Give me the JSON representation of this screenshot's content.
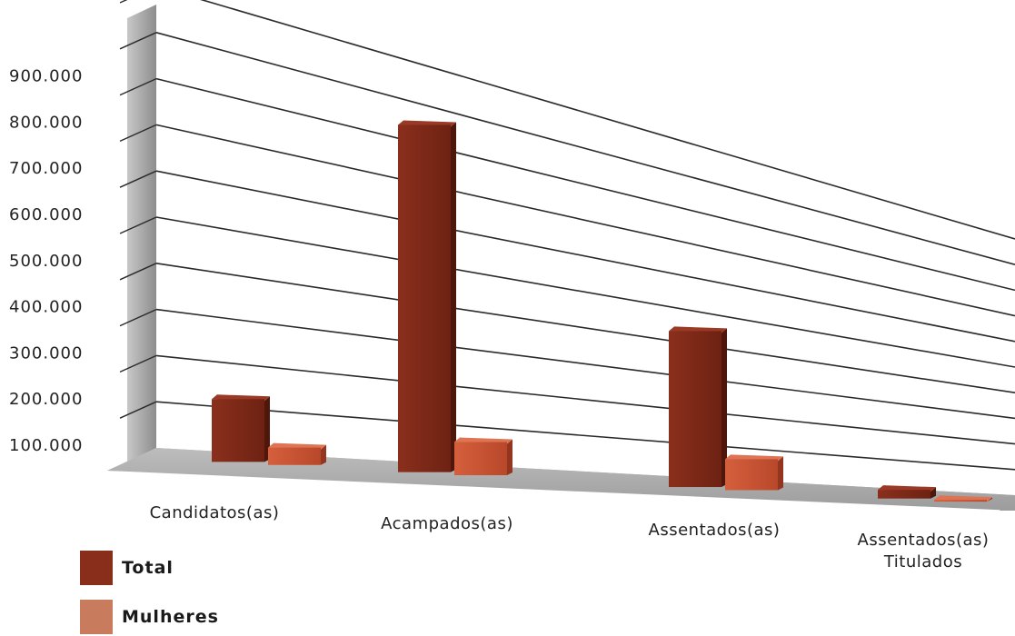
{
  "chart_data": {
    "type": "bar",
    "title": "",
    "xlabel": "",
    "ylabel": "",
    "categories": [
      "Candidatos(as)",
      "Acampados(as)",
      "Assentados(as)",
      "Assentados(as)\nTitulados"
    ],
    "series": [
      {
        "name": "Total",
        "values": [
          140000,
          860000,
          460000,
          30000
        ]
      },
      {
        "name": "Mulheres",
        "values": [
          40000,
          85000,
          95000,
          6000
        ]
      }
    ],
    "y_ticks": [
      "100.000",
      "200.000",
      "300.000",
      "400.000",
      "500.000",
      "600.000",
      "700.000",
      "800.000",
      "900.000"
    ],
    "ylim": [
      0,
      1000000
    ],
    "grid": true,
    "legend_position": "bottom-left",
    "colors": {
      "total": "#7a2a1a",
      "mulheres": "#c9573a",
      "floor": "#a3a3a3",
      "wall": "#9a9a9a",
      "grid": "#2a2a2a"
    }
  },
  "legend": {
    "items": [
      {
        "label": "Total",
        "color": "#8a2e1c"
      },
      {
        "label": "Mulheres",
        "color": "#c97b5e"
      }
    ]
  }
}
